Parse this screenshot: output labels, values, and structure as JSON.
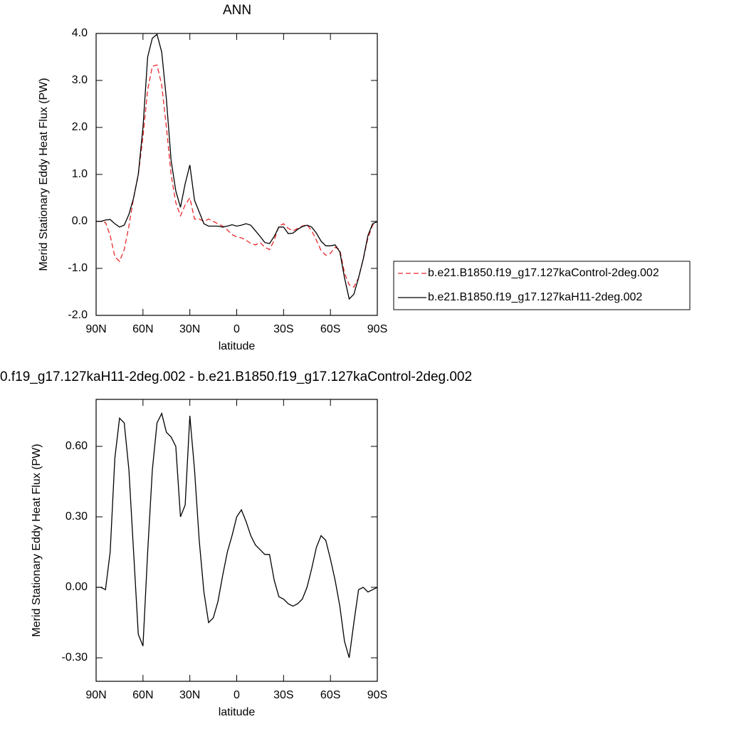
{
  "chart_data": [
    {
      "type": "line",
      "title": "ANN",
      "xlabel": "latitude",
      "ylabel": "Merid Stationary Eddy Heat Flux (PW)",
      "x": [
        90,
        87,
        84,
        81,
        78,
        75,
        72,
        69,
        66,
        63,
        60,
        57,
        54,
        51,
        48,
        45,
        42,
        39,
        36,
        33,
        30,
        27,
        24,
        21,
        18,
        15,
        12,
        9,
        6,
        3,
        0,
        -3,
        -6,
        -9,
        -12,
        -15,
        -18,
        -21,
        -24,
        -27,
        -30,
        -33,
        -36,
        -39,
        -42,
        -45,
        -48,
        -51,
        -54,
        -57,
        -60,
        -63,
        -66,
        -69,
        -72,
        -75,
        -78,
        -81,
        -84,
        -87,
        -90
      ],
      "series": [
        {
          "name": "b.e21.B1850.f19_g17.127kaControl-2deg.002",
          "color": "#e8282a",
          "line_style": "dashed",
          "values": [
            0,
            0,
            -0.02,
            -0.3,
            -0.75,
            -0.85,
            -0.6,
            -0.1,
            0.5,
            1.0,
            1.8,
            2.8,
            3.3,
            3.33,
            2.9,
            2.0,
            1.0,
            0.4,
            0.12,
            0.35,
            0.5,
            0.05,
            0.05,
            0.0,
            0.05,
            0.0,
            -0.05,
            -0.1,
            -0.18,
            -0.28,
            -0.33,
            -0.35,
            -0.4,
            -0.47,
            -0.5,
            -0.45,
            -0.55,
            -0.6,
            -0.4,
            -0.1,
            -0.05,
            -0.15,
            -0.2,
            -0.15,
            -0.1,
            -0.07,
            -0.2,
            -0.4,
            -0.62,
            -0.72,
            -0.68,
            -0.55,
            -0.6,
            -1.1,
            -1.35,
            -1.4,
            -1.2,
            -0.8,
            -0.35,
            -0.08,
            0
          ]
        },
        {
          "name": "b.e21.B1850.f19_g17.127kaH11-2deg.002",
          "color": "#000000",
          "line_style": "solid",
          "values": [
            0,
            0,
            0.03,
            0.04,
            -0.05,
            -0.12,
            -0.08,
            0.15,
            0.5,
            1.0,
            2.0,
            3.5,
            3.9,
            3.98,
            3.6,
            2.6,
            1.3,
            0.65,
            0.3,
            0.8,
            1.2,
            0.45,
            0.2,
            -0.05,
            -0.1,
            -0.1,
            -0.1,
            -0.12,
            -0.1,
            -0.07,
            -0.1,
            -0.08,
            -0.05,
            -0.08,
            -0.2,
            -0.32,
            -0.45,
            -0.47,
            -0.32,
            -0.12,
            -0.12,
            -0.26,
            -0.25,
            -0.17,
            -0.11,
            -0.08,
            -0.12,
            -0.25,
            -0.42,
            -0.52,
            -0.52,
            -0.5,
            -0.65,
            -1.2,
            -1.65,
            -1.55,
            -1.2,
            -0.8,
            -0.3,
            -0.05,
            0
          ]
        }
      ],
      "xlim": [
        90,
        -90
      ],
      "xticks": [
        {
          "value": 90,
          "label": "90N"
        },
        {
          "value": 60,
          "label": "60N"
        },
        {
          "value": 30,
          "label": "30N"
        },
        0,
        {
          "value": -30,
          "label": "30S"
        },
        {
          "value": -60,
          "label": "60S"
        },
        {
          "value": -90,
          "label": "90S"
        }
      ],
      "ylim": [
        -2,
        4
      ],
      "yticks": [
        {
          "value": -2,
          "label": "-2.0"
        },
        {
          "value": -1,
          "label": "-1.0"
        },
        {
          "value": 0,
          "label": "0.0"
        },
        {
          "value": 1,
          "label": "1.0"
        },
        {
          "value": 2,
          "label": "2.0"
        },
        {
          "value": 3,
          "label": "3.0"
        },
        {
          "value": 4,
          "label": "4.0"
        }
      ],
      "legend": "right"
    },
    {
      "type": "line",
      "title": "0.f19_g17.127kaH11-2deg.002 - b.e21.B1850.f19_g17.127kaControl-2deg.002",
      "xlabel": "latitude",
      "ylabel": "Merid Stationary Eddy Heat Flux (PW)",
      "x": [
        90,
        87,
        84,
        81,
        78,
        75,
        72,
        69,
        66,
        63,
        60,
        57,
        54,
        51,
        48,
        45,
        42,
        39,
        36,
        33,
        30,
        27,
        24,
        21,
        18,
        15,
        12,
        9,
        6,
        3,
        0,
        -3,
        -6,
        -9,
        -12,
        -15,
        -18,
        -21,
        -24,
        -27,
        -30,
        -33,
        -36,
        -39,
        -42,
        -45,
        -48,
        -51,
        -54,
        -57,
        -60,
        -63,
        -66,
        -69,
        -72,
        -75,
        -78,
        -81,
        -84,
        -87,
        -90
      ],
      "series": [
        {
          "color": "#000000",
          "line_style": "solid",
          "values": [
            0,
            0,
            -0.01,
            0.15,
            0.55,
            0.72,
            0.7,
            0.5,
            0.15,
            -0.2,
            -0.25,
            0.15,
            0.5,
            0.7,
            0.74,
            0.66,
            0.64,
            0.6,
            0.3,
            0.35,
            0.73,
            0.5,
            0.2,
            -0.02,
            -0.15,
            -0.13,
            -0.06,
            0.05,
            0.15,
            0.22,
            0.3,
            0.33,
            0.28,
            0.22,
            0.18,
            0.16,
            0.14,
            0.14,
            0.03,
            -0.04,
            -0.05,
            -0.07,
            -0.08,
            -0.07,
            -0.05,
            0.0,
            0.08,
            0.17,
            0.22,
            0.2,
            0.12,
            0.03,
            -0.08,
            -0.23,
            -0.3,
            -0.15,
            -0.01,
            0.0,
            -0.02,
            -0.01,
            0
          ]
        }
      ],
      "xlim": [
        90,
        -90
      ],
      "xticks": [
        {
          "value": 90,
          "label": "90N"
        },
        {
          "value": 60,
          "label": "60N"
        },
        {
          "value": 30,
          "label": "30N"
        },
        0,
        {
          "value": -30,
          "label": "30S"
        },
        {
          "value": -60,
          "label": "60S"
        },
        {
          "value": -90,
          "label": "90S"
        }
      ],
      "ylim": [
        -0.4,
        0.8
      ],
      "yticks": [
        {
          "value": -0.3,
          "label": "-0.30"
        },
        {
          "value": 0,
          "label": "0.00"
        },
        {
          "value": 0.3,
          "label": "0.30"
        },
        {
          "value": 0.6,
          "label": "0.60"
        }
      ]
    }
  ]
}
